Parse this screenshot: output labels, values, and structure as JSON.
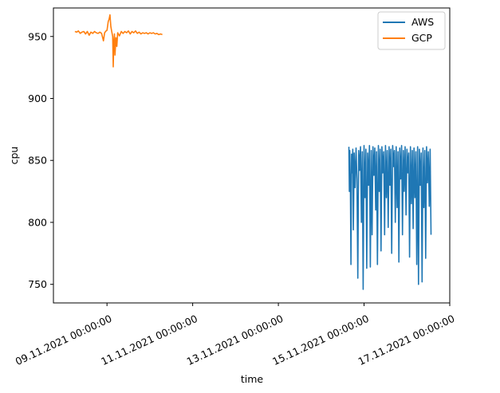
{
  "chart_data": {
    "type": "line",
    "title": "",
    "xlabel": "time",
    "ylabel": "cpu",
    "x_axis_type": "date",
    "xlim": [
      "2021-11-07T18:00:00",
      "2021-11-17T00:00:00"
    ],
    "ylim": [
      735,
      973
    ],
    "x_ticks": [
      {
        "x": "2021-11-09T00:00:00",
        "label": "09.11.2021 00:00:00"
      },
      {
        "x": "2021-11-11T00:00:00",
        "label": "11.11.2021 00:00:00"
      },
      {
        "x": "2021-11-13T00:00:00",
        "label": "13.11.2021 00:00:00"
      },
      {
        "x": "2021-11-15T00:00:00",
        "label": "15.11.2021 00:00:00"
      },
      {
        "x": "2021-11-17T00:00:00",
        "label": "17.11.2021 00:00:00"
      }
    ],
    "y_ticks": [
      750,
      800,
      850,
      900,
      950
    ],
    "grid": false,
    "legend_placement": "top-right",
    "series": [
      {
        "name": "AWS",
        "color": "#1f77b4",
        "points": [
          [
            "2021-11-14T15:30:00",
            861
          ],
          [
            "2021-11-14T15:45:00",
            825
          ],
          [
            "2021-11-14T16:00:00",
            858
          ],
          [
            "2021-11-14T16:20:00",
            830
          ],
          [
            "2021-11-14T16:40:00",
            766
          ],
          [
            "2021-11-14T17:00:00",
            855
          ],
          [
            "2021-11-14T17:20:00",
            840
          ],
          [
            "2021-11-14T17:40:00",
            859
          ],
          [
            "2021-11-14T18:00:00",
            794
          ],
          [
            "2021-11-14T18:30:00",
            856
          ],
          [
            "2021-11-14T19:00:00",
            828
          ],
          [
            "2021-11-14T19:30:00",
            860
          ],
          [
            "2021-11-14T20:00:00",
            835
          ],
          [
            "2021-11-14T20:30:00",
            755
          ],
          [
            "2021-11-14T21:00:00",
            858
          ],
          [
            "2021-11-14T21:30:00",
            842
          ],
          [
            "2021-11-14T22:00:00",
            861
          ],
          [
            "2021-11-14T22:30:00",
            800
          ],
          [
            "2021-11-14T23:00:00",
            857
          ],
          [
            "2021-11-14T23:30:00",
            746
          ],
          [
            "2021-11-15T00:00:00",
            862
          ],
          [
            "2021-11-15T00:30:00",
            820
          ],
          [
            "2021-11-15T01:00:00",
            859
          ],
          [
            "2021-11-15T01:30:00",
            763
          ],
          [
            "2021-11-15T02:00:00",
            856
          ],
          [
            "2021-11-15T02:30:00",
            830
          ],
          [
            "2021-11-15T03:00:00",
            862
          ],
          [
            "2021-11-15T03:30:00",
            764
          ],
          [
            "2021-11-15T04:00:00",
            858
          ],
          [
            "2021-11-15T04:30:00",
            790
          ],
          [
            "2021-11-15T05:00:00",
            861
          ],
          [
            "2021-11-15T05:30:00",
            838
          ],
          [
            "2021-11-15T06:00:00",
            860
          ],
          [
            "2021-11-15T06:30:00",
            810
          ],
          [
            "2021-11-15T07:00:00",
            857
          ],
          [
            "2021-11-15T07:30:00",
            766
          ],
          [
            "2021-11-15T08:00:00",
            862
          ],
          [
            "2021-11-15T08:30:00",
            825
          ],
          [
            "2021-11-15T09:00:00",
            859
          ],
          [
            "2021-11-15T09:30:00",
            777
          ],
          [
            "2021-11-15T10:00:00",
            861
          ],
          [
            "2021-11-15T10:30:00",
            840
          ],
          [
            "2021-11-15T11:00:00",
            857
          ],
          [
            "2021-11-15T11:30:00",
            790
          ],
          [
            "2021-11-15T12:00:00",
            862
          ],
          [
            "2021-11-15T12:30:00",
            820
          ],
          [
            "2021-11-15T13:00:00",
            858
          ],
          [
            "2021-11-15T13:30:00",
            796
          ],
          [
            "2021-11-15T14:00:00",
            861
          ],
          [
            "2021-11-15T14:30:00",
            830
          ],
          [
            "2021-11-15T15:00:00",
            859
          ],
          [
            "2021-11-15T15:30:00",
            775
          ],
          [
            "2021-11-15T16:00:00",
            862
          ],
          [
            "2021-11-15T16:30:00",
            845
          ],
          [
            "2021-11-15T17:00:00",
            858
          ],
          [
            "2021-11-15T17:30:00",
            800
          ],
          [
            "2021-11-15T18:00:00",
            861
          ],
          [
            "2021-11-15T18:30:00",
            812
          ],
          [
            "2021-11-15T19:00:00",
            857
          ],
          [
            "2021-11-15T19:30:00",
            768
          ],
          [
            "2021-11-15T20:00:00",
            860
          ],
          [
            "2021-11-15T20:30:00",
            835
          ],
          [
            "2021-11-15T21:00:00",
            862
          ],
          [
            "2021-11-15T21:30:00",
            790
          ],
          [
            "2021-11-15T22:00:00",
            858
          ],
          [
            "2021-11-15T22:30:00",
            825
          ],
          [
            "2021-11-15T23:00:00",
            861
          ],
          [
            "2021-11-15T23:30:00",
            806
          ],
          [
            "2021-11-16T00:00:00",
            859
          ],
          [
            "2021-11-16T00:30:00",
            840
          ],
          [
            "2021-11-16T01:00:00",
            856
          ],
          [
            "2021-11-16T01:30:00",
            772
          ],
          [
            "2021-11-16T02:00:00",
            861
          ],
          [
            "2021-11-16T02:30:00",
            815
          ],
          [
            "2021-11-16T03:00:00",
            858
          ],
          [
            "2021-11-16T03:30:00",
            795
          ],
          [
            "2021-11-16T04:00:00",
            860
          ],
          [
            "2021-11-16T04:30:00",
            820
          ],
          [
            "2021-11-16T05:00:00",
            857
          ],
          [
            "2021-11-16T05:30:00",
            766
          ],
          [
            "2021-11-16T06:00:00",
            861
          ],
          [
            "2021-11-16T06:30:00",
            750
          ],
          [
            "2021-11-16T07:00:00",
            859
          ],
          [
            "2021-11-16T07:30:00",
            830
          ],
          [
            "2021-11-16T08:00:00",
            856
          ],
          [
            "2021-11-16T08:30:00",
            752
          ],
          [
            "2021-11-16T09:00:00",
            860
          ],
          [
            "2021-11-16T09:30:00",
            812
          ],
          [
            "2021-11-16T10:00:00",
            858
          ],
          [
            "2021-11-16T10:30:00",
            771
          ],
          [
            "2021-11-16T11:00:00",
            861
          ],
          [
            "2021-11-16T11:30:00",
            832
          ],
          [
            "2021-11-16T12:00:00",
            857
          ],
          [
            "2021-11-16T12:30:00",
            813
          ],
          [
            "2021-11-16T13:00:00",
            859
          ],
          [
            "2021-11-16T13:30:00",
            790
          ]
        ]
      },
      {
        "name": "GCP",
        "color": "#ff7f0e",
        "points": [
          [
            "2021-11-08T06:00:00",
            954
          ],
          [
            "2021-11-08T07:00:00",
            953.5
          ],
          [
            "2021-11-08T08:00:00",
            954.5
          ],
          [
            "2021-11-08T09:00:00",
            952.5
          ],
          [
            "2021-11-08T10:00:00",
            953.5
          ],
          [
            "2021-11-08T11:00:00",
            954
          ],
          [
            "2021-11-08T12:00:00",
            952
          ],
          [
            "2021-11-08T13:00:00",
            954
          ],
          [
            "2021-11-08T14:00:00",
            951
          ],
          [
            "2021-11-08T15:00:00",
            953.5
          ],
          [
            "2021-11-08T16:00:00",
            952.5
          ],
          [
            "2021-11-08T17:00:00",
            954
          ],
          [
            "2021-11-08T18:00:00",
            953
          ],
          [
            "2021-11-08T19:00:00",
            952.5
          ],
          [
            "2021-11-08T20:00:00",
            953.5
          ],
          [
            "2021-11-08T21:00:00",
            952.5
          ],
          [
            "2021-11-08T22:00:00",
            946.5
          ],
          [
            "2021-11-08T22:40:00",
            953
          ],
          [
            "2021-11-08T23:30:00",
            954.5
          ],
          [
            "2021-11-09T00:00:00",
            955
          ],
          [
            "2021-11-09T00:40:00",
            962
          ],
          [
            "2021-11-09T01:10:00",
            964
          ],
          [
            "2021-11-09T01:40:00",
            967.5
          ],
          [
            "2021-11-09T02:10:00",
            958
          ],
          [
            "2021-11-09T02:40:00",
            954
          ],
          [
            "2021-11-09T03:10:00",
            950
          ],
          [
            "2021-11-09T03:30:00",
            925.5
          ],
          [
            "2021-11-09T03:50:00",
            945
          ],
          [
            "2021-11-09T04:10:00",
            952
          ],
          [
            "2021-11-09T04:30:00",
            935
          ],
          [
            "2021-11-09T05:00:00",
            949
          ],
          [
            "2021-11-09T05:30:00",
            942
          ],
          [
            "2021-11-09T06:00:00",
            953
          ],
          [
            "2021-11-09T07:00:00",
            950.5
          ],
          [
            "2021-11-09T08:00:00",
            954
          ],
          [
            "2021-11-09T09:00:00",
            952.5
          ],
          [
            "2021-11-09T10:00:00",
            954
          ],
          [
            "2021-11-09T11:00:00",
            953
          ],
          [
            "2021-11-09T12:00:00",
            954.5
          ],
          [
            "2021-11-09T13:00:00",
            952
          ],
          [
            "2021-11-09T14:00:00",
            954
          ],
          [
            "2021-11-09T15:00:00",
            953
          ],
          [
            "2021-11-09T16:00:00",
            954.5
          ],
          [
            "2021-11-09T17:00:00",
            952.5
          ],
          [
            "2021-11-09T18:00:00",
            953.5
          ],
          [
            "2021-11-09T19:00:00",
            952
          ],
          [
            "2021-11-09T20:00:00",
            953
          ],
          [
            "2021-11-09T21:00:00",
            952.5
          ],
          [
            "2021-11-09T22:00:00",
            953
          ],
          [
            "2021-11-09T23:00:00",
            952
          ],
          [
            "2021-11-10T00:00:00",
            953
          ],
          [
            "2021-11-10T01:00:00",
            952.5
          ],
          [
            "2021-11-10T02:00:00",
            953
          ],
          [
            "2021-11-10T03:00:00",
            952
          ],
          [
            "2021-11-10T04:00:00",
            952.5
          ],
          [
            "2021-11-10T05:00:00",
            951.5
          ],
          [
            "2021-11-10T06:00:00",
            952
          ],
          [
            "2021-11-10T07:00:00",
            951.5
          ]
        ]
      }
    ]
  }
}
